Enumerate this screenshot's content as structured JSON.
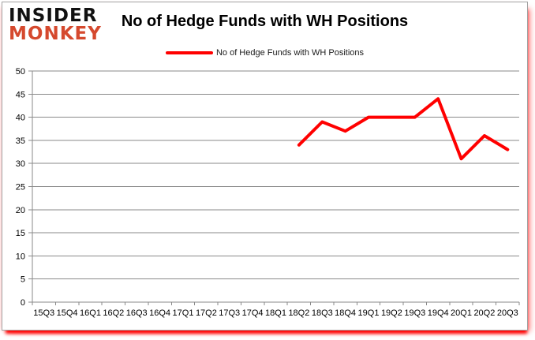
{
  "logo": {
    "line1": "INSIDER",
    "line2": "MONKEY"
  },
  "header": {
    "title": "No of Hedge Funds with WH Positions"
  },
  "legend": {
    "label": "No of Hedge Funds with WH Positions",
    "swatch_color": "#ff0000"
  },
  "colors": {
    "line": "#ff0000",
    "grid": "#8a8a8a",
    "axis": "#8a8a8a",
    "logo_red": "#d5492e",
    "text": "#000000",
    "glow_red": "#ff0000"
  },
  "chart_data": {
    "type": "line",
    "title": "No of Hedge Funds with WH Positions",
    "categories": [
      "15Q3",
      "15Q4",
      "16Q1",
      "16Q2",
      "16Q3",
      "16Q4",
      "17Q1",
      "17Q2",
      "17Q3",
      "17Q4",
      "18Q1",
      "18Q2",
      "18Q3",
      "18Q4",
      "19Q1",
      "19Q2",
      "19Q3",
      "19Q4",
      "20Q1",
      "20Q2",
      "20Q3"
    ],
    "series": [
      {
        "name": "No of Hedge Funds with WH Positions",
        "color": "#ff0000",
        "values": [
          null,
          null,
          null,
          null,
          null,
          null,
          null,
          null,
          null,
          null,
          null,
          34,
          39,
          37,
          40,
          40,
          40,
          44,
          31,
          36,
          33
        ]
      }
    ],
    "ylim": [
      0,
      50
    ],
    "ytick_step": 5,
    "grid": true,
    "legend_position": "top"
  }
}
